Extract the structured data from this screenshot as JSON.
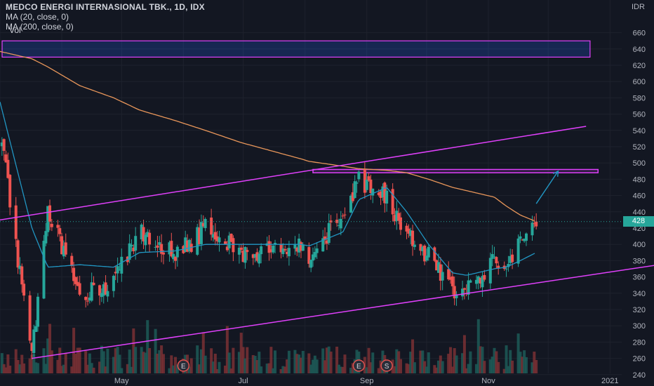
{
  "header": {
    "title": "MEDCO ENERGI INTERNASIONAL TBK., 1D, IDX",
    "ma20": "MA (20, close, 0)",
    "ma200": "MA (200, close, 0)",
    "vol": "Vol"
  },
  "axis": {
    "unit": "IDR",
    "last_price": "428",
    "x_labels": [
      "May",
      "Jul",
      "Sep",
      "Nov",
      "2021"
    ]
  },
  "colors": {
    "background": "#131722",
    "up": "#26a69a",
    "down": "#ef5350",
    "ma20": "#2196c3",
    "ma200": "#e8965a",
    "trendline": "#e040fb",
    "arrow": "#2196c3",
    "earnings_badge": "#e0524f"
  },
  "chart_data": {
    "type": "candlestick",
    "ylim": [
      230,
      680
    ],
    "yticks": [
      240,
      260,
      280,
      300,
      320,
      340,
      360,
      380,
      400,
      420,
      440,
      460,
      480,
      500,
      520,
      540,
      560,
      580,
      600,
      620,
      640,
      660
    ],
    "last_price": 428,
    "events": [
      {
        "label": "E",
        "date": "2020-06-01"
      },
      {
        "label": "E",
        "date": "2020-08-28"
      },
      {
        "label": "S",
        "date": "2020-09-11"
      }
    ],
    "annotations": [
      {
        "type": "trendline",
        "from": {
          "date": "2020-03-01",
          "price": 430
        },
        "to": {
          "date": "2020-12-20",
          "price": 545
        }
      },
      {
        "type": "trendline",
        "from": {
          "date": "2020-03-17",
          "price": 260
        },
        "to": {
          "date": "2021-01-31",
          "price": 377
        }
      },
      {
        "type": "horizontal_zone",
        "from_date": "2020-08-05",
        "to_date": "2020-12-26",
        "low": 488,
        "high": 492
      },
      {
        "type": "arrow",
        "from": {
          "date": "2020-11-25",
          "price": 450
        },
        "to": {
          "date": "2020-12-06",
          "price": 490
        }
      },
      {
        "type": "box",
        "from_date": "2020-03-01",
        "to_date": "2020-12-22",
        "low": 630,
        "high": 650
      }
    ],
    "anchors": {
      "dates": [
        "2020-03-01",
        "2020-03-17",
        "2020-03-25",
        "2020-04-10",
        "2020-04-27",
        "2020-05-10",
        "2020-05-28",
        "2020-06-12",
        "2020-06-30",
        "2020-07-15",
        "2020-07-30",
        "2020-08-03",
        "2020-08-20",
        "2020-08-28",
        "2020-09-11",
        "2020-09-21",
        "2020-10-02",
        "2020-10-14",
        "2020-10-21",
        "2020-11-04",
        "2020-11-10",
        "2020-11-17",
        "2020-11-25"
      ],
      "close": [
        540,
        262,
        440,
        340,
        352,
        420,
        385,
        420,
        390,
        395,
        400,
        380,
        440,
        480,
        460,
        410,
        385,
        345,
        340,
        385,
        375,
        410,
        435
      ],
      "ma20": [
        575,
        420,
        372,
        375,
        372,
        390,
        392,
        400,
        400,
        400,
        400,
        398,
        415,
        455,
        470,
        440,
        400,
        365,
        362,
        370,
        372,
        380,
        390
      ],
      "ma200": [
        637,
        628,
        618,
        595,
        580,
        565,
        552,
        540,
        525,
        515,
        505,
        502,
        496,
        493,
        491,
        488,
        480,
        470,
        466,
        458,
        447,
        436,
        428
      ]
    }
  }
}
